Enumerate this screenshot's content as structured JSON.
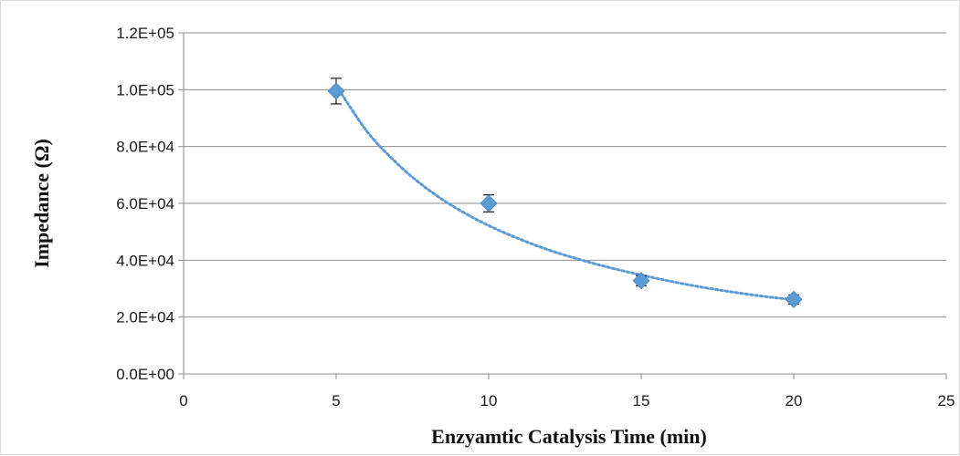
{
  "chart_data": {
    "type": "scatter",
    "title": "",
    "xlabel": "Enzyamtic Catalysis Time (min)",
    "ylabel": "Impedance (Ω)",
    "xlim": [
      0,
      25
    ],
    "ylim": [
      0,
      120000
    ],
    "x_ticks": [
      0,
      5,
      10,
      15,
      20,
      25
    ],
    "x_tick_labels": [
      "0",
      "5",
      "10",
      "15",
      "20",
      "25"
    ],
    "y_ticks": [
      0,
      20000,
      40000,
      60000,
      80000,
      100000,
      120000
    ],
    "y_tick_labels": [
      "0.0E+00",
      "2.0E+04",
      "4.0E+04",
      "6.0E+04",
      "8.0E+04",
      "1.0E+05",
      "1.2E+05"
    ],
    "grid": "horizontal",
    "legend": "none",
    "series": [
      {
        "x": [
          5,
          10,
          15,
          20
        ],
        "y": [
          99500,
          60000,
          32800,
          26200
        ],
        "error": [
          4500,
          3000,
          1800,
          1600
        ],
        "marker": "diamond",
        "color": "#5b9bd5"
      }
    ],
    "trendline": {
      "style": "dotted",
      "color": "#5b9bd5",
      "x": [
        5,
        6,
        7,
        8,
        9,
        10,
        11,
        12,
        13,
        14,
        15,
        16,
        17,
        18,
        19,
        20
      ],
      "y": [
        101500,
        85500,
        74000,
        65000,
        57900,
        52200,
        47500,
        43500,
        40200,
        37300,
        34800,
        32500,
        30500,
        28800,
        27300,
        26100
      ]
    }
  }
}
